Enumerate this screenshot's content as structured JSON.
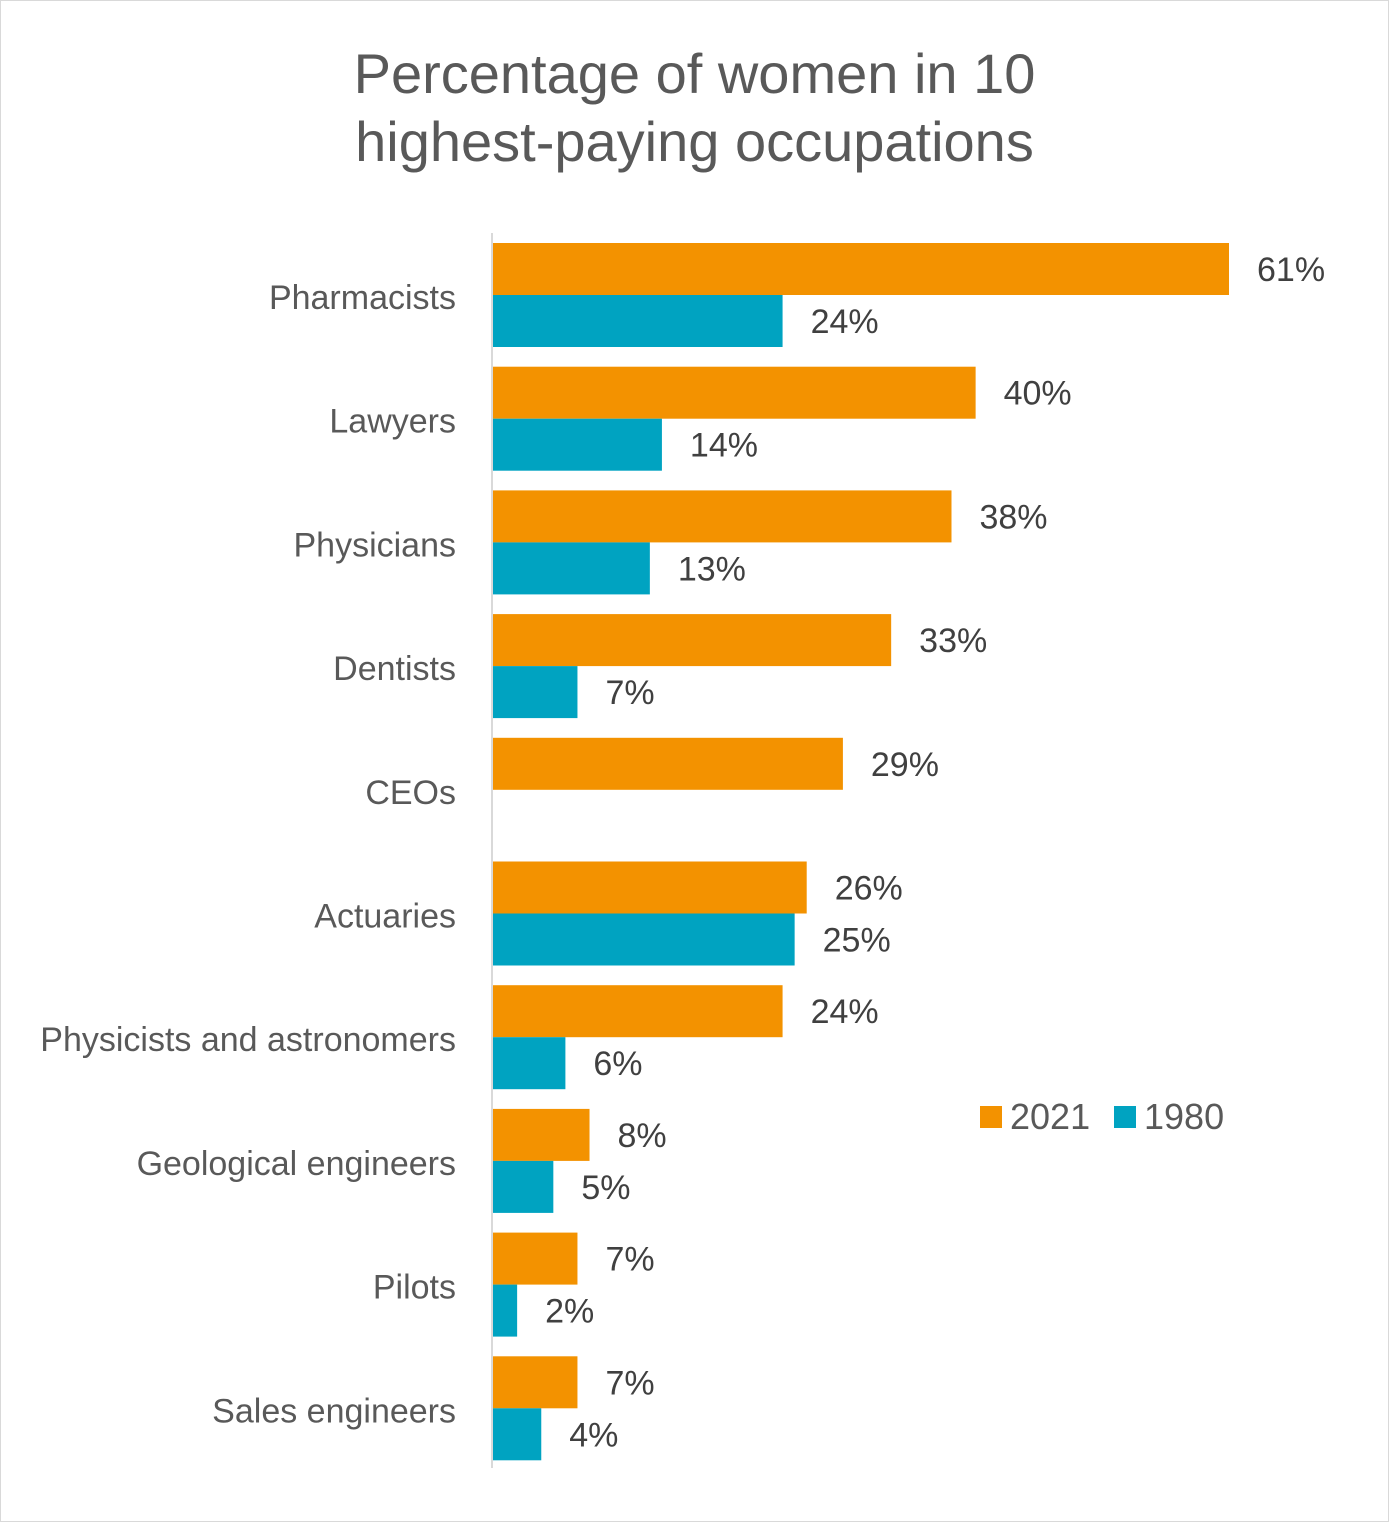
{
  "chart_data": {
    "type": "bar",
    "orientation": "horizontal",
    "title_lines": [
      "Percentage of women in 10",
      "highest-paying occupations"
    ],
    "categories": [
      "Pharmacists",
      "Lawyers",
      "Physicians",
      "Dentists",
      "CEOs",
      "Actuaries",
      "Physicists and astronomers",
      "Geological engineers",
      "Pilots",
      "Sales engineers"
    ],
    "series": [
      {
        "name": "2021",
        "color": "#F39200",
        "values": [
          61,
          40,
          38,
          33,
          29,
          26,
          24,
          8,
          7,
          7
        ],
        "labels": [
          "61%",
          "40%",
          "38%",
          "33%",
          "29%",
          "26%",
          "24%",
          "8%",
          "7%",
          "7%"
        ]
      },
      {
        "name": "1980",
        "color": "#00A3C1",
        "values": [
          24,
          14,
          13,
          7,
          null,
          25,
          6,
          5,
          2,
          4
        ],
        "labels": [
          "24%",
          "14%",
          "13%",
          "7%",
          "",
          "25%",
          "6%",
          "5%",
          "2%",
          "4%"
        ]
      }
    ],
    "xlim": [
      0,
      61
    ],
    "legend_position": "right",
    "grid": false
  }
}
